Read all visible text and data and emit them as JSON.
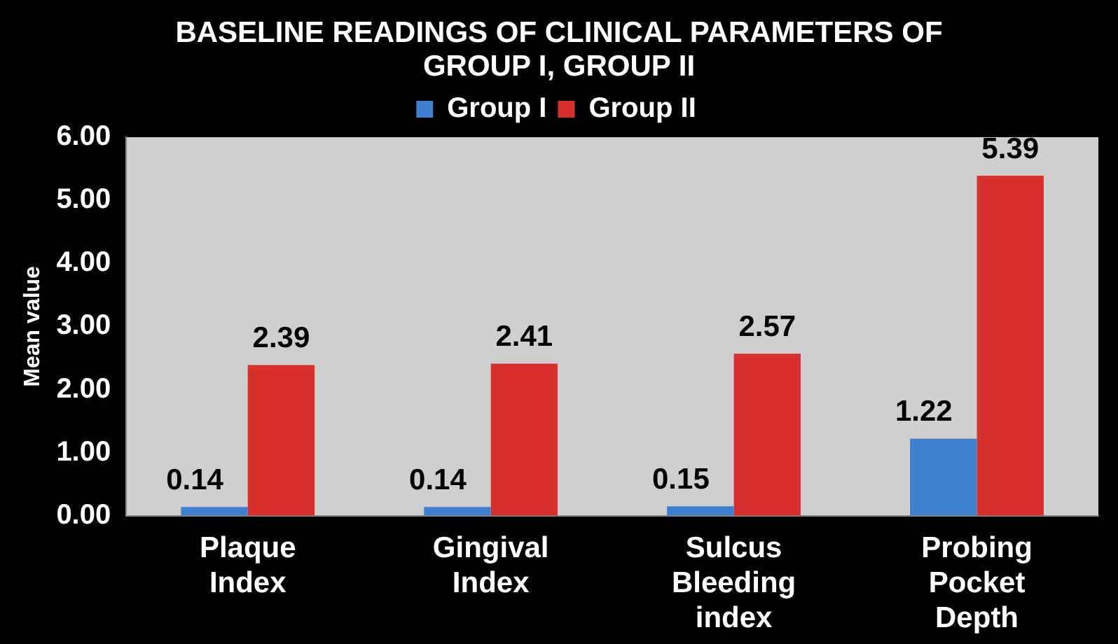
{
  "chart_data": {
    "type": "bar",
    "title": "BASELINE READINGS OF CLINICAL PARAMETERS OF GROUP I, GROUP II",
    "categories": [
      "Plaque Index",
      "Gingival Index",
      "Sulcus Bleeding index",
      "Probing Pocket Depth"
    ],
    "series": [
      {
        "name": "Group I",
        "color": "#3f7fd0",
        "values": [
          0.14,
          0.14,
          0.15,
          1.22
        ]
      },
      {
        "name": "Group II",
        "color": "#d8302c",
        "values": [
          2.39,
          2.41,
          2.57,
          5.39
        ]
      }
    ],
    "ylabel": "Mean value",
    "ylim": [
      0,
      6
    ],
    "yticks": [
      {
        "value": 0,
        "label": "0.00"
      },
      {
        "value": 1,
        "label": "1.00"
      },
      {
        "value": 2,
        "label": "2.00"
      },
      {
        "value": 3,
        "label": "3.00"
      },
      {
        "value": 4,
        "label": "4.00"
      },
      {
        "value": 5,
        "label": "5.00"
      },
      {
        "value": 6,
        "label": "6.00"
      }
    ],
    "grid": false,
    "legend": "top",
    "data_labels": true
  }
}
